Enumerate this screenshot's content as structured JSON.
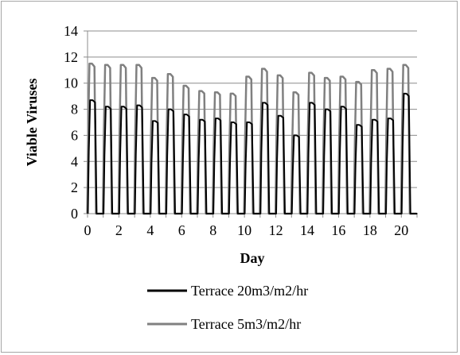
{
  "chart_data": {
    "type": "line",
    "title": "",
    "xlabel": "Day",
    "ylabel": "Viable Viruses",
    "xlim": [
      0,
      21
    ],
    "ylim": [
      0,
      14
    ],
    "xticks": [
      0,
      2,
      4,
      6,
      8,
      10,
      12,
      14,
      16,
      18,
      20
    ],
    "yticks": [
      0,
      2,
      4,
      6,
      8,
      10,
      12,
      14
    ],
    "grid": "horizontal",
    "legend_position": "bottom",
    "series": [
      {
        "name": "Terrace 20m3/m2/hr",
        "color": "#000000",
        "pulse_days": [
          0,
          1,
          2,
          3,
          4,
          5,
          6,
          7,
          8,
          9,
          10,
          11,
          12,
          13,
          14,
          15,
          16,
          17,
          18,
          19,
          20
        ],
        "peaks": [
          8.7,
          8.2,
          8.2,
          8.3,
          7.1,
          8.0,
          7.6,
          7.2,
          7.3,
          7.0,
          7.0,
          8.5,
          7.5,
          6.0,
          8.5,
          8.0,
          8.2,
          6.8,
          7.2,
          7.3,
          9.2
        ]
      },
      {
        "name": "Terrace 5m3/m2/hr",
        "color": "#808080",
        "pulse_days": [
          0,
          1,
          2,
          3,
          4,
          5,
          6,
          7,
          8,
          9,
          10,
          11,
          12,
          13,
          14,
          15,
          16,
          17,
          18,
          19,
          20
        ],
        "peaks": [
          11.5,
          11.4,
          11.4,
          11.4,
          10.4,
          10.7,
          9.8,
          9.4,
          9.3,
          9.2,
          10.5,
          11.1,
          10.6,
          9.3,
          10.8,
          10.4,
          10.5,
          10.1,
          11.0,
          11.1,
          11.4
        ]
      }
    ]
  }
}
